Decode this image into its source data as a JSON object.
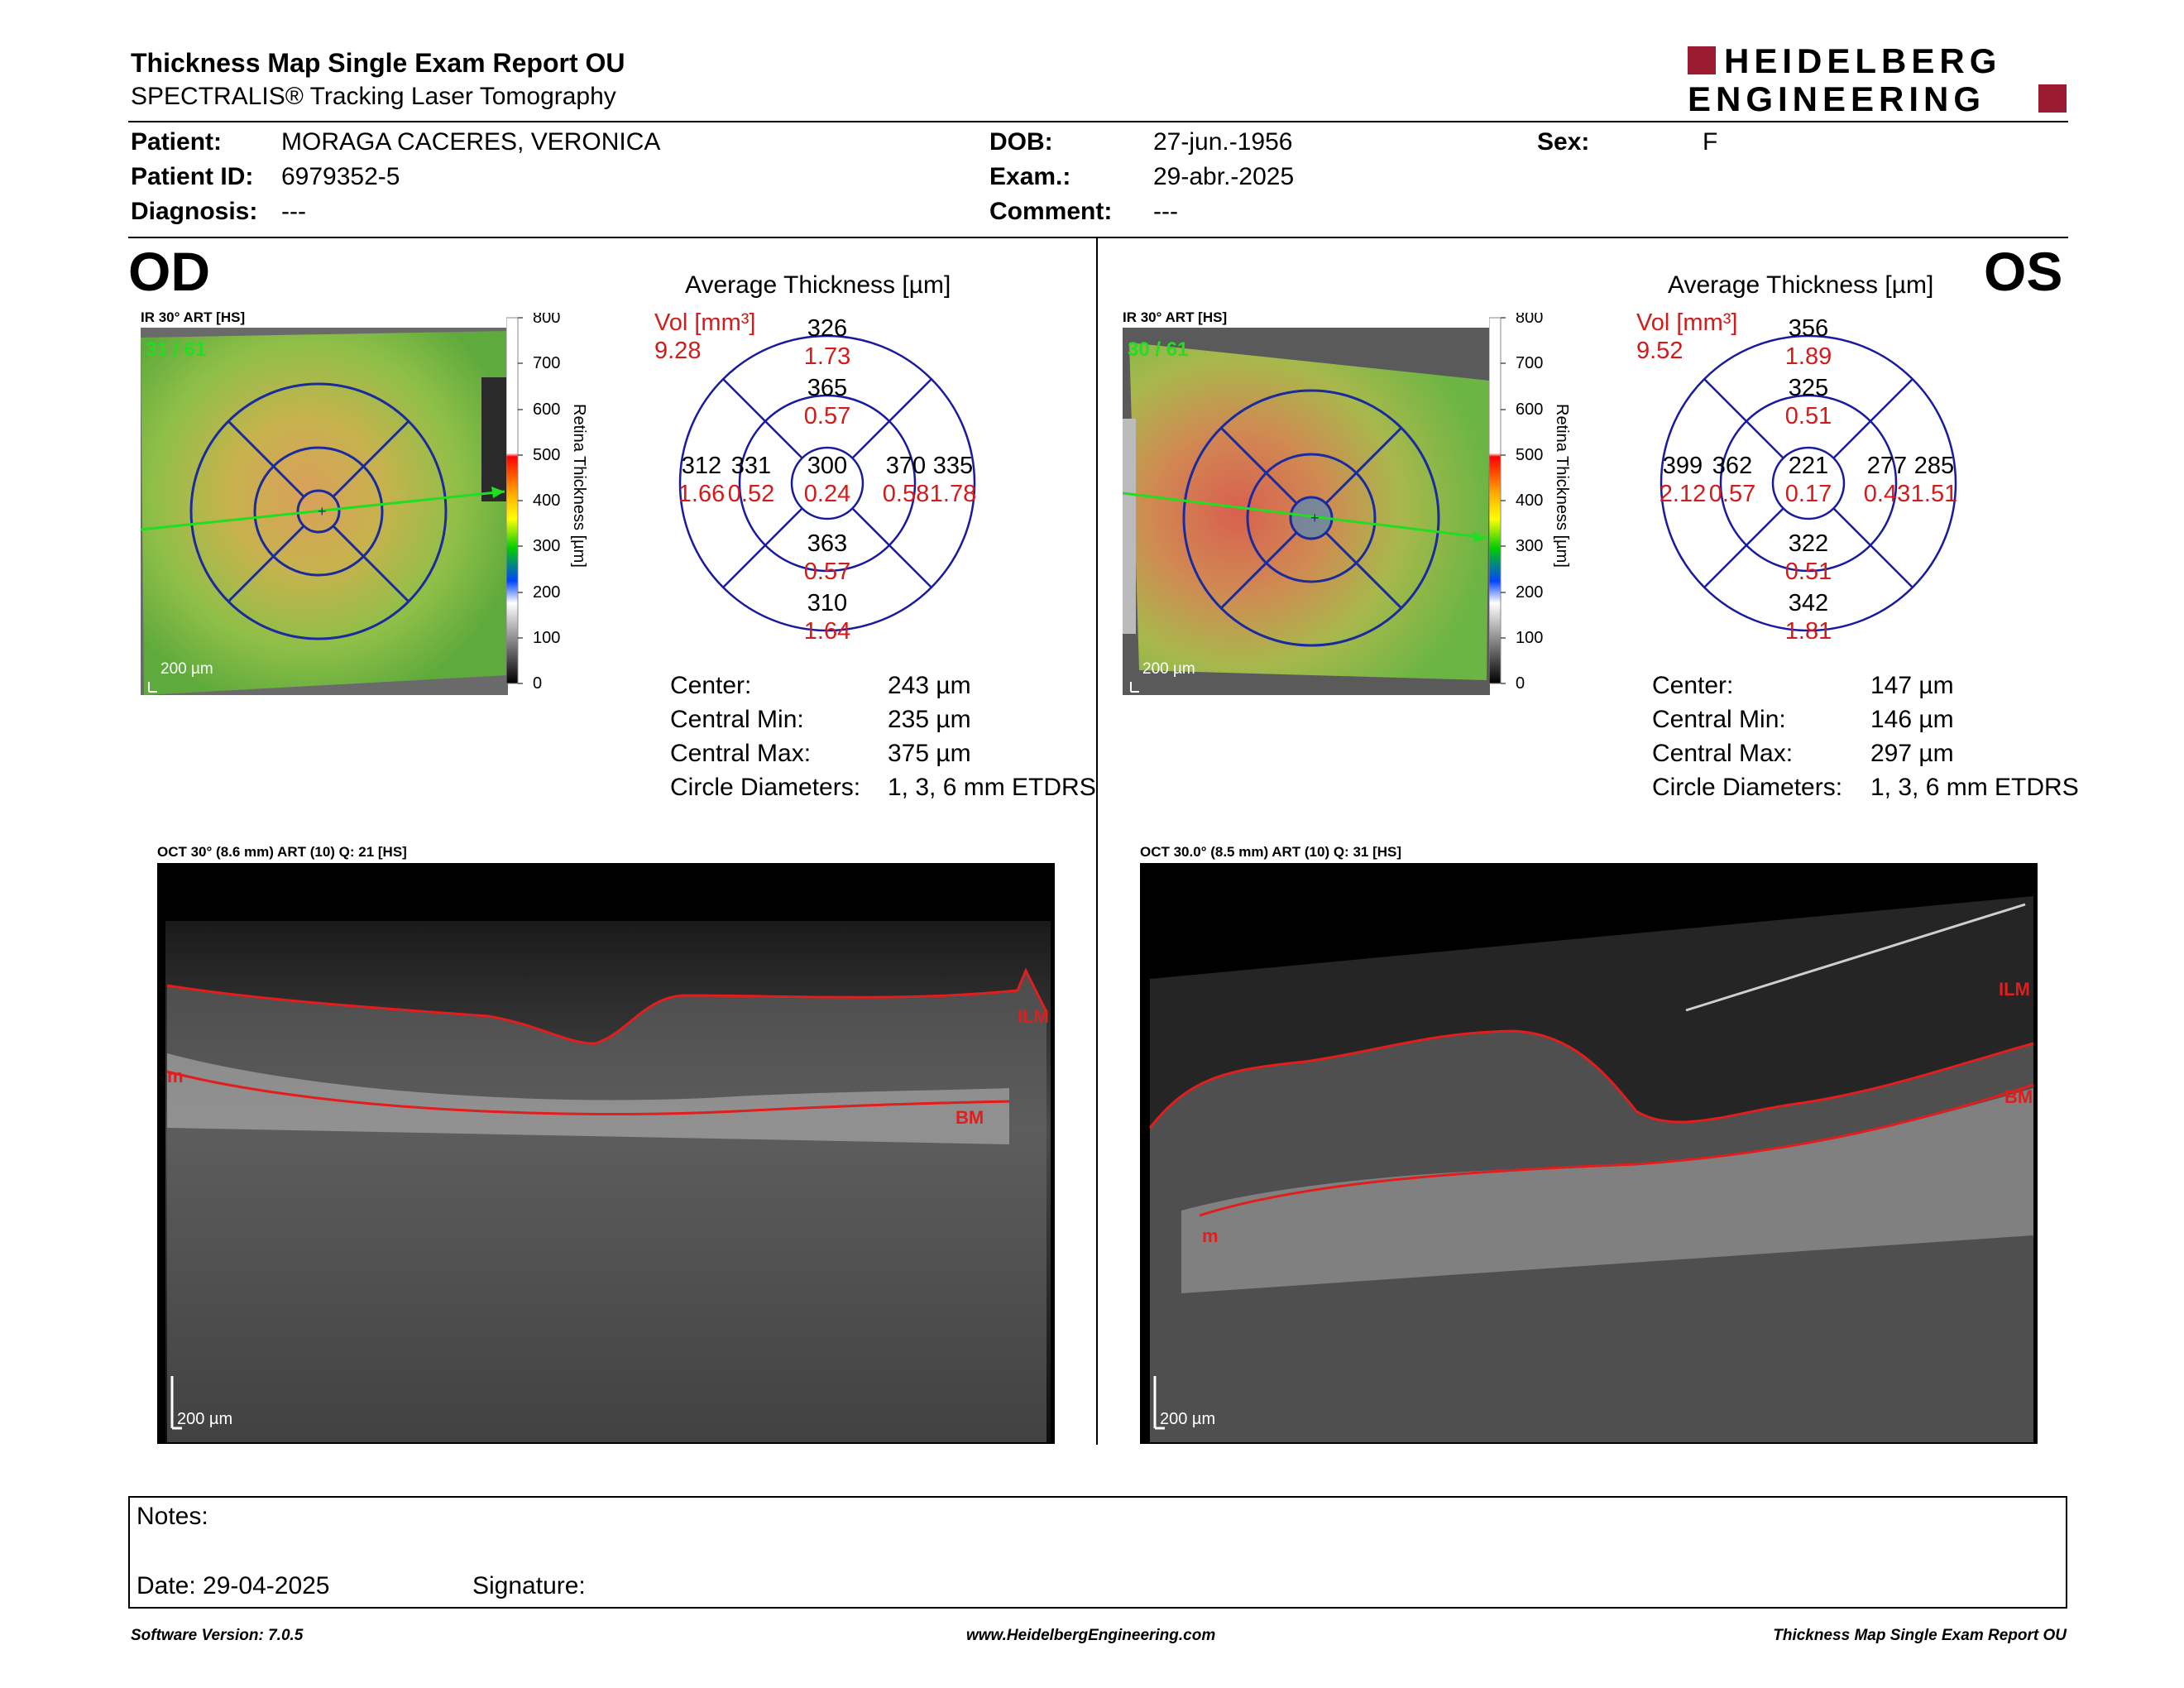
{
  "report": {
    "title": "Thickness Map Single Exam Report OU",
    "subtitle": "SPECTRALIS® Tracking Laser Tomography",
    "logo_line1": "HEIDELBERG",
    "logo_line2": "ENGINEERING",
    "logo_color": "#9b1b30"
  },
  "patient": {
    "name_label": "Patient:",
    "name": "MORAGA CACERES, VERONICA",
    "id_label": "Patient ID:",
    "id": "6979352-5",
    "diagnosis_label": "Diagnosis:",
    "diagnosis": "---",
    "dob_label": "DOB:",
    "dob": "27-jun.-1956",
    "exam_label": "Exam.:",
    "exam": "29-abr.-2025",
    "comment_label": "Comment:",
    "comment": "---",
    "sex_label": "Sex:",
    "sex": "F"
  },
  "od": {
    "eye": "OD",
    "ir_label": "IR 30° ART [HS]",
    "frames": "31 / 61",
    "scale": "200 µm",
    "avg_title": "Average Thickness [µm]",
    "vol_label": "Vol [mm³]",
    "vol_total": "9.28",
    "sectors": {
      "outer_sup": {
        "t": "326",
        "v": "1.73"
      },
      "inner_sup": {
        "t": "365",
        "v": "0.57"
      },
      "outer_left": {
        "t": "312",
        "v": "1.66"
      },
      "inner_left": {
        "t": "331",
        "v": "0.52"
      },
      "center": {
        "t": "300",
        "v": "0.24"
      },
      "inner_right": {
        "t": "370",
        "v": "0.58"
      },
      "outer_right": {
        "t": "335",
        "v": "1.78"
      },
      "inner_inf": {
        "t": "363",
        "v": "0.57"
      },
      "outer_inf": {
        "t": "310",
        "v": "1.64"
      }
    },
    "stats": [
      {
        "label": "Center:",
        "value": "243 µm"
      },
      {
        "label": "Central Min:",
        "value": "235 µm"
      },
      {
        "label": "Central Max:",
        "value": "375 µm"
      },
      {
        "label": "Circle Diameters:",
        "value": "1, 3, 6 mm ETDRS"
      }
    ],
    "oct_label": "OCT 30° (8.6 mm) ART (10) Q: 21 [HS]",
    "oct_scale": "200 µm",
    "ilm": "ILM",
    "bm": "BM",
    "m": "m"
  },
  "os": {
    "eye": "OS",
    "ir_label": "IR 30° ART [HS]",
    "frames": "30 / 61",
    "scale": "200 µm",
    "avg_title": "Average Thickness [µm]",
    "vol_label": "Vol [mm³]",
    "vol_total": "9.52",
    "sectors": {
      "outer_sup": {
        "t": "356",
        "v": "1.89"
      },
      "inner_sup": {
        "t": "325",
        "v": "0.51"
      },
      "outer_left": {
        "t": "399",
        "v": "2.12"
      },
      "inner_left": {
        "t": "362",
        "v": "0.57"
      },
      "center": {
        "t": "221",
        "v": "0.17"
      },
      "inner_right": {
        "t": "277",
        "v": "0.43"
      },
      "outer_right": {
        "t": "285",
        "v": "1.51"
      },
      "inner_inf": {
        "t": "322",
        "v": "0.51"
      },
      "outer_inf": {
        "t": "342",
        "v": "1.81"
      }
    },
    "stats": [
      {
        "label": "Center:",
        "value": "147 µm"
      },
      {
        "label": "Central Min:",
        "value": "146 µm"
      },
      {
        "label": "Central Max:",
        "value": "297 µm"
      },
      {
        "label": "Circle Diameters:",
        "value": "1, 3, 6 mm ETDRS"
      }
    ],
    "oct_label": "OCT 30.0° (8.5 mm) ART (10) Q: 31 [HS]",
    "oct_scale": "200 µm",
    "ilm": "ILM",
    "bm": "BM",
    "m": "m"
  },
  "colorbar": {
    "ticks": [
      "800",
      "700",
      "600",
      "500",
      "400",
      "300",
      "200",
      "100",
      "0"
    ],
    "axis_label": "Retina Thickness [µm]"
  },
  "notes": {
    "notes_label": "Notes:",
    "date_label": "Date: 29-04-2025",
    "signature_label": "Signature:"
  },
  "footer": {
    "left": "Software Version: 7.0.5",
    "center": "www.HeidelbergEngineering.com",
    "right": "Thickness Map Single Exam Report OU"
  }
}
